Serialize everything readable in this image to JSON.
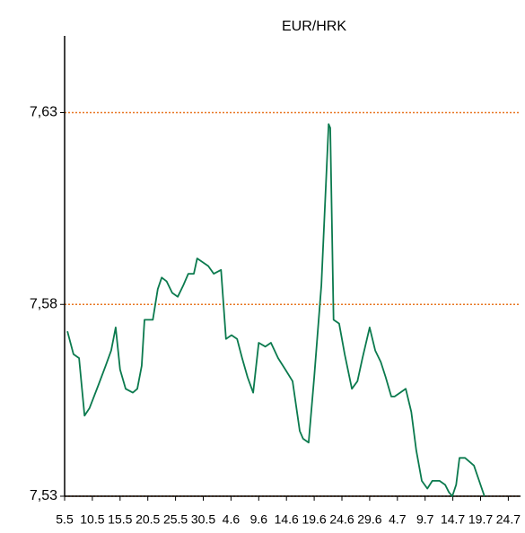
{
  "chart_data": {
    "type": "line",
    "title": "EUR/HRK",
    "xlim": [
      0,
      82.2
    ],
    "xticks": [
      {
        "value": 0,
        "label": "5.5"
      },
      {
        "value": 5,
        "label": "10.5"
      },
      {
        "value": 10,
        "label": "15.5"
      },
      {
        "value": 15,
        "label": "20.5"
      },
      {
        "value": 20,
        "label": "25.5"
      },
      {
        "value": 25,
        "label": "30.5"
      },
      {
        "value": 30,
        "label": "4.6"
      },
      {
        "value": 35,
        "label": "9.6"
      },
      {
        "value": 40,
        "label": "14.6"
      },
      {
        "value": 45,
        "label": "19.6"
      },
      {
        "value": 50,
        "label": "24.6"
      },
      {
        "value": 55,
        "label": "29.6"
      },
      {
        "value": 60,
        "label": "4.7"
      },
      {
        "value": 65,
        "label": "9.7"
      },
      {
        "value": 70,
        "label": "14.7"
      },
      {
        "value": 75,
        "label": "19.7"
      },
      {
        "value": 80,
        "label": "24.7"
      }
    ],
    "ylim": [
      7.53,
      7.65
    ],
    "yticks": [
      {
        "value": 7.53,
        "label": "7,53"
      },
      {
        "value": 7.58,
        "label": "7,58"
      },
      {
        "value": 7.63,
        "label": "7,63"
      }
    ],
    "grid": true,
    "grid_color": "#e87722",
    "x": [
      0.5,
      1.6,
      2.6,
      3.6,
      4.5,
      6.1,
      7.4,
      8.4,
      9.2,
      10.0,
      11.0,
      12.3,
      13.1,
      13.9,
      14.4,
      15.9,
      16.8,
      17.5,
      18.4,
      19.4,
      20.4,
      21.4,
      22.3,
      23.3,
      23.9,
      24.9,
      25.9,
      26.9,
      28.2,
      29.1,
      30.1,
      31.1,
      32.0,
      33.0,
      34.0,
      35.0,
      36.2,
      37.2,
      38.5,
      39.8,
      41.1,
      42.4,
      43.0,
      44.0,
      45.0,
      46.3,
      47.6,
      47.9,
      48.5,
      49.5,
      50.5,
      51.8,
      52.8,
      53.7,
      55.0,
      56.0,
      57.0,
      57.9,
      58.9,
      59.5,
      60.5,
      61.5,
      62.5,
      63.4,
      64.4,
      65.4,
      66.3,
      67.6,
      68.6,
      69.3,
      69.9,
      70.6,
      71.2,
      72.2,
      73.8,
      75.7
    ],
    "series": [
      {
        "name": "EUR/HRK",
        "color": "#0b7a4e",
        "values": [
          7.573,
          7.567,
          7.566,
          7.551,
          7.553,
          7.559,
          7.564,
          7.568,
          7.574,
          7.563,
          7.558,
          7.557,
          7.558,
          7.564,
          7.576,
          7.576,
          7.584,
          7.587,
          7.586,
          7.583,
          7.582,
          7.585,
          7.588,
          7.588,
          7.592,
          7.591,
          7.59,
          7.588,
          7.589,
          7.571,
          7.572,
          7.571,
          7.566,
          7.561,
          7.557,
          7.57,
          7.569,
          7.57,
          7.566,
          7.563,
          7.56,
          7.547,
          7.545,
          7.544,
          7.561,
          7.585,
          7.627,
          7.626,
          7.576,
          7.575,
          7.567,
          7.558,
          7.56,
          7.566,
          7.574,
          7.568,
          7.565,
          7.561,
          7.556,
          7.556,
          7.557,
          7.558,
          7.552,
          7.542,
          7.534,
          7.532,
          7.534,
          7.534,
          7.533,
          7.531,
          7.53,
          7.533,
          7.54,
          7.54,
          7.538,
          7.53
        ]
      }
    ]
  }
}
